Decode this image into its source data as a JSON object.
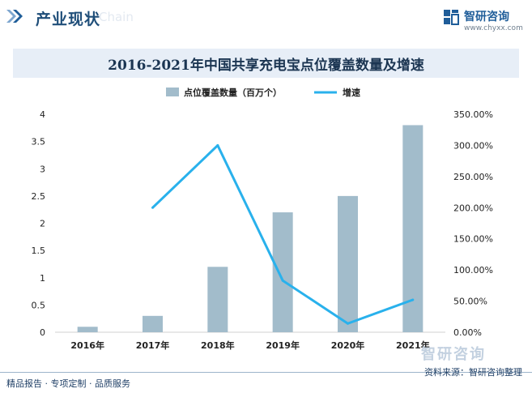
{
  "header": {
    "title": "产业现状",
    "ghost_text": "Chain",
    "brand_name": "智研咨询",
    "brand_url": "www.chyxx.com"
  },
  "colors": {
    "bar": "#a2bccb",
    "line": "#29b1ec",
    "header_text": "#1f4e79",
    "band": "#e7eef7"
  },
  "chart_data": {
    "type": "bar",
    "title": "2016-2021年中国共享充电宝点位覆盖数量及增速",
    "categories": [
      "2016年",
      "2017年",
      "2018年",
      "2019年",
      "2020年",
      "2021年"
    ],
    "series": [
      {
        "name": "点位覆盖数量（百万个）",
        "type": "bar",
        "axis": "left",
        "values": [
          0.1,
          0.3,
          1.2,
          2.2,
          2.5,
          3.8
        ]
      },
      {
        "name": "增速",
        "type": "line",
        "axis": "right",
        "values": [
          null,
          200,
          300,
          83,
          14,
          52
        ]
      }
    ],
    "y_left": {
      "min": 0,
      "max": 4,
      "ticks": [
        "0",
        "0.5",
        "1",
        "1.5",
        "2",
        "2.5",
        "3",
        "3.5",
        "4"
      ]
    },
    "y_right": {
      "min": 0,
      "max": 350,
      "ticks": [
        "0.00%",
        "50.00%",
        "100.00%",
        "150.00%",
        "200.00%",
        "250.00%",
        "300.00%",
        "350.00%"
      ]
    },
    "legend_position": "top-center",
    "grid": false
  },
  "footer": {
    "left_text": "精品报告 · 专项定制 · 品质服务",
    "right_text": "资料来源：智研咨询整理",
    "watermark_brand": "智研咨询"
  }
}
